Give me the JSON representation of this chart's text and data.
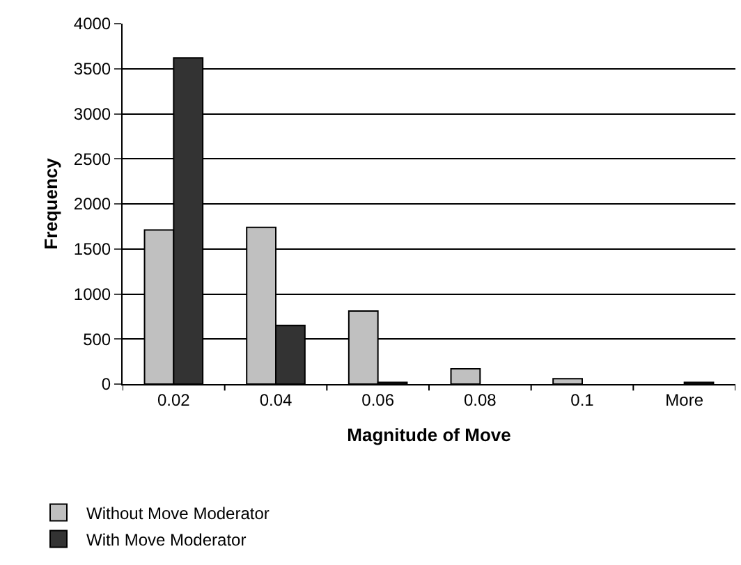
{
  "chart_data": {
    "type": "bar",
    "xlabel": "Magnitude of Move",
    "ylabel": "Frequency",
    "categories": [
      "0.02",
      "0.04",
      "0.06",
      "0.08",
      "0.1",
      "More"
    ],
    "series": [
      {
        "name": "Without Move Moderator",
        "color": "#c0c0c0",
        "values": [
          1710,
          1740,
          810,
          170,
          60,
          0
        ]
      },
      {
        "name": "With Move Moderator",
        "color": "#333333",
        "values": [
          3620,
          650,
          20,
          0,
          0,
          20
        ]
      }
    ],
    "ylim": [
      0,
      4000
    ],
    "yticks": [
      0,
      500,
      1000,
      1500,
      2000,
      2500,
      3000,
      3500,
      4000
    ],
    "grid": "y",
    "legend": "bottom"
  }
}
